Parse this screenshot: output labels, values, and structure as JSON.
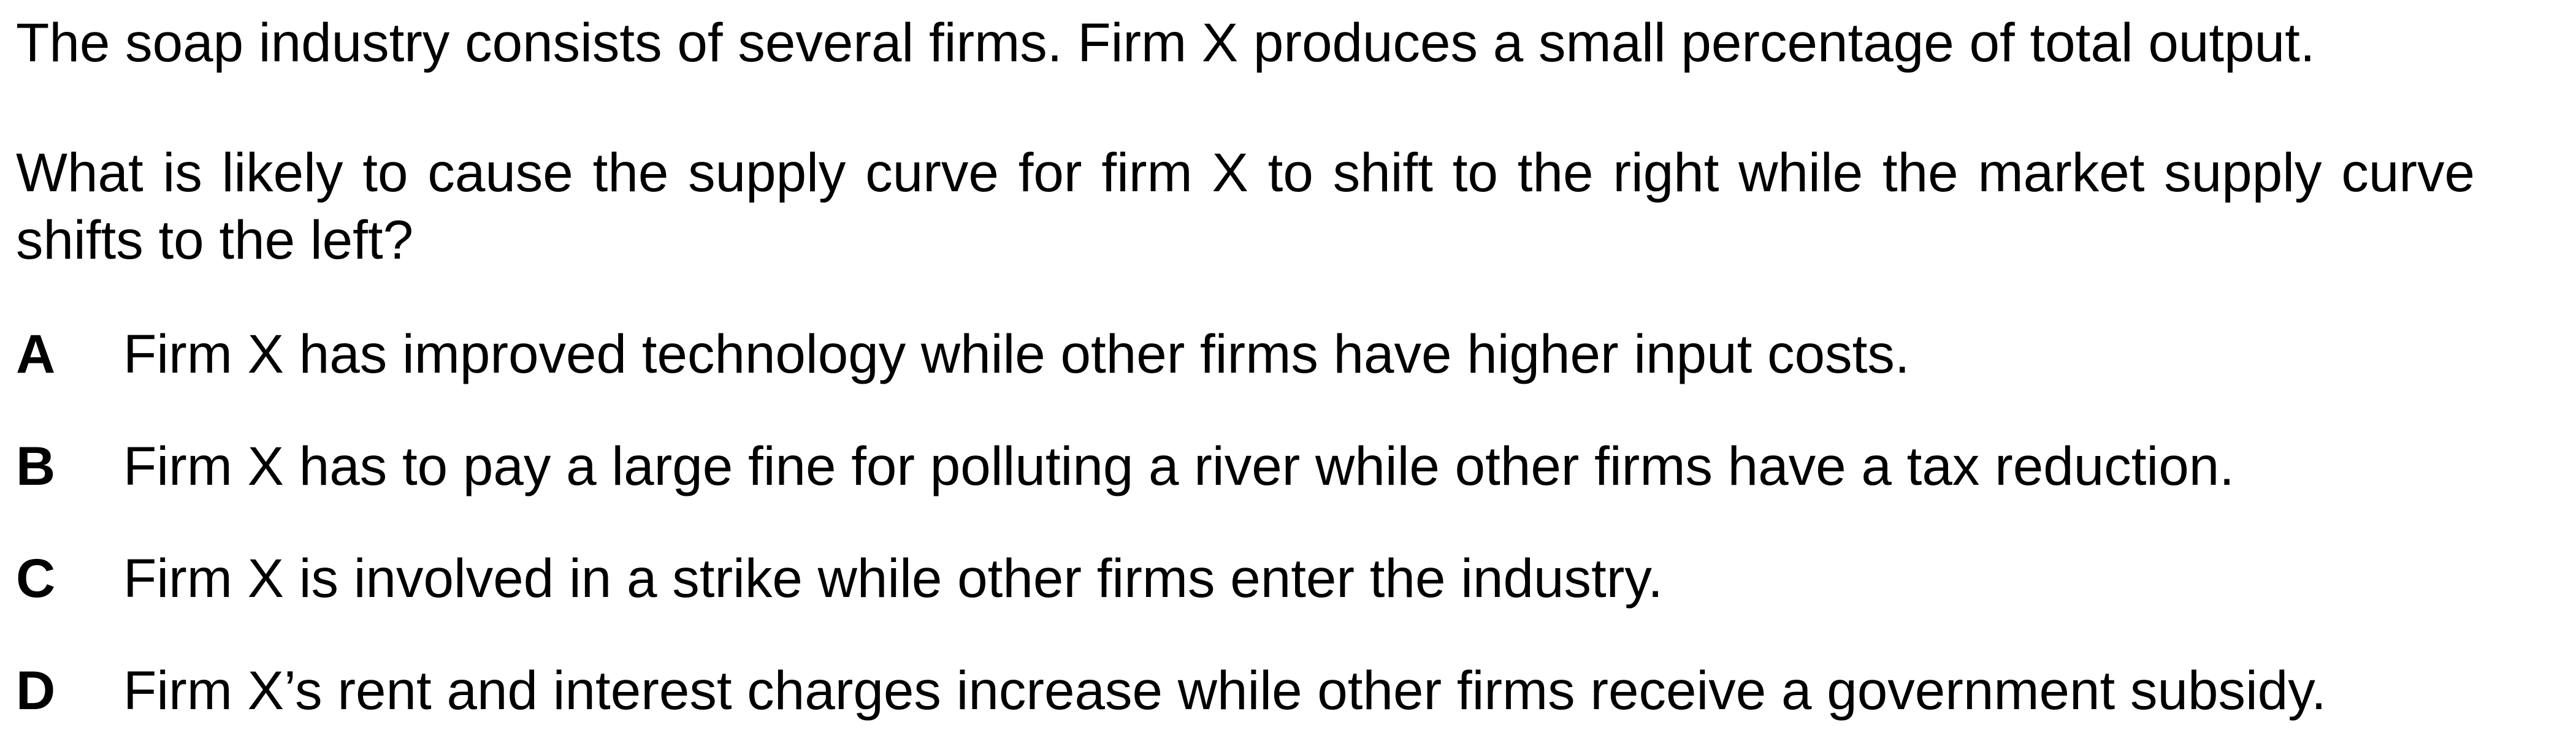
{
  "intro": "The soap industry consists of several firms. Firm X produces a small percentage of total output.",
  "question": "What is likely to cause the supply curve for firm X to shift to the right while the market supply curve shifts to the left?",
  "options": [
    {
      "letter": "A",
      "text": "Firm X has improved technology while other firms have higher input costs."
    },
    {
      "letter": "B",
      "text": "Firm X has to pay a large fine for polluting a river while other firms have a tax reduction."
    },
    {
      "letter": "C",
      "text": "Firm X is involved in a strike while other firms enter the industry."
    },
    {
      "letter": "D",
      "text": "Firm X’s rent and interest charges increase while other firms receive a government subsidy."
    }
  ]
}
